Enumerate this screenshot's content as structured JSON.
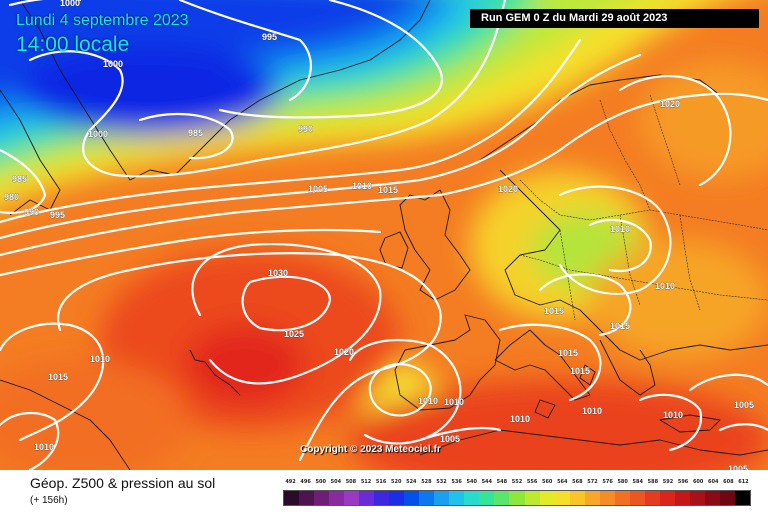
{
  "header": {
    "date": "Lundi 4 septembre 2023",
    "time": "14:00 locale",
    "run": "Run GEM 0 Z du Mardi 29 août 2023"
  },
  "copyright": "Copyright © 2023 Meteociel.fr",
  "footer": {
    "title": "Géop. Z500 & pression au sol",
    "subtitle": "(+ 156h)"
  },
  "isobars": [
    "1000",
    "995",
    "1000",
    "985",
    "990",
    "985",
    "980",
    "990",
    "995",
    "1000",
    "1005",
    "1010",
    "1015",
    "1020",
    "1020",
    "1010",
    "1010",
    "1030",
    "1025",
    "1020",
    "1010",
    "1015",
    "1010",
    "1015",
    "1015",
    "1015",
    "1010",
    "1010",
    "1005",
    "1015",
    "1010",
    "1005",
    "1005",
    "1010",
    "1010"
  ],
  "scale": {
    "labels": [
      "492",
      "496",
      "500",
      "504",
      "508",
      "512",
      "516",
      "520",
      "524",
      "528",
      "532",
      "536",
      "540",
      "544",
      "548",
      "552",
      "556",
      "560",
      "564",
      "568",
      "572",
      "576",
      "580",
      "584",
      "588",
      "592",
      "596",
      "600",
      "604",
      "608",
      "612"
    ],
    "colors": [
      "#2b0a2a",
      "#4e1450",
      "#6e1e78",
      "#8a2aa0",
      "#9a3ac4",
      "#6a2cd6",
      "#3d27e0",
      "#1a2ee6",
      "#0050ea",
      "#0a78ee",
      "#1aa0f0",
      "#20c2ea",
      "#28dccc",
      "#34e49c",
      "#5ae66a",
      "#8ee83c",
      "#bcea2c",
      "#e2ea2a",
      "#f6de2a",
      "#f8c428",
      "#f8a828",
      "#f68c26",
      "#f27024",
      "#ec5620",
      "#e43c1c",
      "#d8261a",
      "#c41818",
      "#a8101a",
      "#8c0a18",
      "#6e0614",
      "#000000"
    ]
  }
}
